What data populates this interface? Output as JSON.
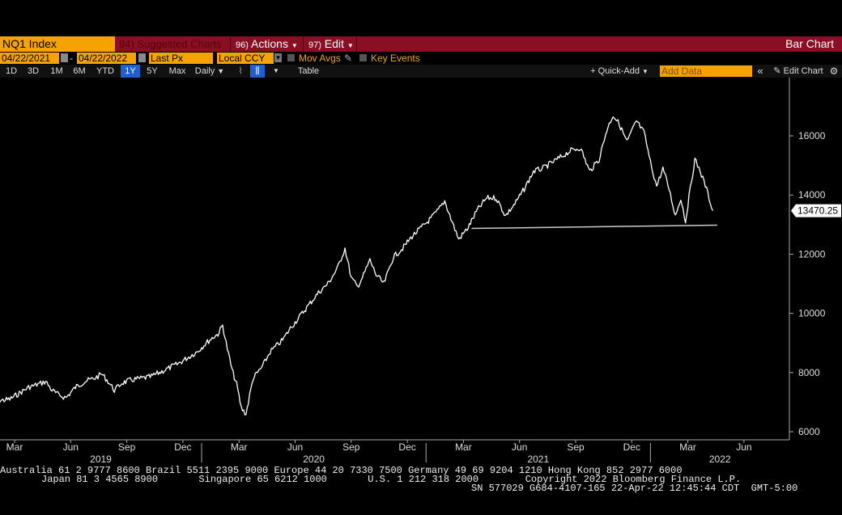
{
  "toolbar": {
    "ticker": "NQ1 Index",
    "suggested_num": "94)",
    "suggested_label": "Suggested Charts",
    "actions_num": "96)",
    "actions_label": "Actions",
    "edit_num": "97)",
    "edit_label": "Edit",
    "chart_type": "Bar Chart"
  },
  "settings": {
    "start_date": "04/22/2021",
    "end_date": "04/22/2022",
    "price_field": "Last Px",
    "currency": "Local CCY",
    "mov_avgs": "Mov Avgs",
    "key_events": "Key Events"
  },
  "periods": {
    "b1d": "1D",
    "b3d": "3D",
    "b1m": "1M",
    "b6m": "6M",
    "bytd": "YTD",
    "b1y": "1Y",
    "b5y": "5Y",
    "bmax": "Max",
    "frequency": "Daily",
    "table": "Table",
    "quick_add": "Quick-Add",
    "add_data_placeholder": "Add Data",
    "edit_chart": "Edit Chart"
  },
  "colors": {
    "background": "#000000",
    "accent": "#f5a300",
    "header": "#8a0f24",
    "selected": "#1f5fd0",
    "line": "#ffffff"
  },
  "chart_data": {
    "type": "line",
    "title": "",
    "ylim": [
      5900,
      17400
    ],
    "y_ticks": [
      6000,
      8000,
      10000,
      12000,
      14000,
      16000
    ],
    "y_tick_labels": [
      "6000",
      "8000",
      "10000",
      "12000",
      "14000",
      "16000"
    ],
    "x_month_labels": [
      "Mar",
      "Jun",
      "Sep",
      "Dec",
      "Mar",
      "Jun",
      "Sep",
      "Dec",
      "Mar",
      "Jun",
      "Sep",
      "Dec",
      "Mar",
      "Jun"
    ],
    "x_year_labels": [
      "2019",
      "2020",
      "2021",
      "2022"
    ],
    "last_price": 13470.25,
    "last_price_label": "13470.25",
    "support_line": {
      "from": [
        "2021-03",
        12870
      ],
      "to": [
        "2022-05",
        12980
      ]
    },
    "series": [
      {
        "values": [
          [
            "2019-02",
            7000
          ],
          [
            "2019-02",
            7050
          ],
          [
            "2019-03",
            7100
          ],
          [
            "2019-03",
            7300
          ],
          [
            "2019-04",
            7500
          ],
          [
            "2019-04",
            7600
          ],
          [
            "2019-05",
            7700
          ],
          [
            "2019-05",
            7400
          ],
          [
            "2019-05",
            7250
          ],
          [
            "2019-06",
            7150
          ],
          [
            "2019-06",
            7500
          ],
          [
            "2019-07",
            7700
          ],
          [
            "2019-07",
            7800
          ],
          [
            "2019-08",
            7950
          ],
          [
            "2019-08",
            7700
          ],
          [
            "2019-08",
            7400
          ],
          [
            "2019-09",
            7650
          ],
          [
            "2019-09",
            7750
          ],
          [
            "2019-10",
            7800
          ],
          [
            "2019-10",
            7850
          ],
          [
            "2019-11",
            8000
          ],
          [
            "2019-11",
            8150
          ],
          [
            "2019-12",
            8300
          ],
          [
            "2019-12",
            8500
          ],
          [
            "2020-01",
            8700
          ],
          [
            "2020-01",
            9000
          ],
          [
            "2020-02",
            9200
          ],
          [
            "2020-02",
            9300
          ],
          [
            "2020-02",
            9600
          ],
          [
            "2020-02",
            8800
          ],
          [
            "2020-03",
            8100
          ],
          [
            "2020-03",
            7600
          ],
          [
            "2020-03",
            6800
          ],
          [
            "2020-03",
            6600
          ],
          [
            "2020-04",
            7800
          ],
          [
            "2020-04",
            8200
          ],
          [
            "2020-05",
            8700
          ],
          [
            "2020-05",
            8900
          ],
          [
            "2020-05",
            9100
          ],
          [
            "2020-06",
            9500
          ],
          [
            "2020-06",
            9900
          ],
          [
            "2020-07",
            10300
          ],
          [
            "2020-07",
            10700
          ],
          [
            "2020-08",
            11000
          ],
          [
            "2020-08",
            11500
          ],
          [
            "2020-09",
            12200
          ],
          [
            "2020-09",
            11200
          ],
          [
            "2020-09",
            10900
          ],
          [
            "2020-10",
            11300
          ],
          [
            "2020-10",
            11800
          ],
          [
            "2020-10",
            11300
          ],
          [
            "2020-11",
            11000
          ],
          [
            "2020-11",
            11900
          ],
          [
            "2020-12",
            12200
          ],
          [
            "2020-12",
            12600
          ],
          [
            "2021-01",
            12900
          ],
          [
            "2021-01",
            13200
          ],
          [
            "2021-02",
            13500
          ],
          [
            "2021-02",
            13800
          ],
          [
            "2021-02",
            13200
          ],
          [
            "2021-03",
            12500
          ],
          [
            "2021-03",
            12900
          ],
          [
            "2021-04",
            13500
          ],
          [
            "2021-04",
            13900
          ],
          [
            "2021-05",
            13900
          ],
          [
            "2021-05",
            13300
          ],
          [
            "2021-06",
            13700
          ],
          [
            "2021-06",
            14200
          ],
          [
            "2021-07",
            14800
          ],
          [
            "2021-07",
            14900
          ],
          [
            "2021-08",
            15200
          ],
          [
            "2021-09",
            15500
          ],
          [
            "2021-09",
            15600
          ],
          [
            "2021-10",
            14800
          ],
          [
            "2021-10",
            15200
          ],
          [
            "2021-11",
            16200
          ],
          [
            "2021-11",
            16700
          ],
          [
            "2021-11",
            16400
          ],
          [
            "2021-12",
            15800
          ],
          [
            "2021-12",
            16500
          ],
          [
            "2022-01",
            16100
          ],
          [
            "2022-01",
            15100
          ],
          [
            "2022-01",
            14300
          ],
          [
            "2022-02",
            14900
          ],
          [
            "2022-02",
            14200
          ],
          [
            "2022-02",
            13300
          ],
          [
            "2022-03",
            13900
          ],
          [
            "2022-03",
            13100
          ],
          [
            "2022-03",
            14200
          ],
          [
            "2022-03",
            15200
          ],
          [
            "2022-04",
            14800
          ],
          [
            "2022-04",
            14200
          ],
          [
            "2022-04",
            13470.25
          ]
        ]
      }
    ]
  },
  "footer": {
    "line1": "Australia 61 2 9777 8600 Brazil 5511 2395 9000 Europe 44 20 7330 7500 Germany 49 69 9204 1210 Hong Kong 852 2977 6000",
    "line2": "Japan 81 3 4565 8900       Singapore 65 6212 1000       U.S. 1 212 318 2000        Copyright 2022 Bloomberg Finance L.P.",
    "line3": "SN 577029 G684-4107-165 22-Apr-22 12:45:44 CDT  GMT-5:00"
  }
}
